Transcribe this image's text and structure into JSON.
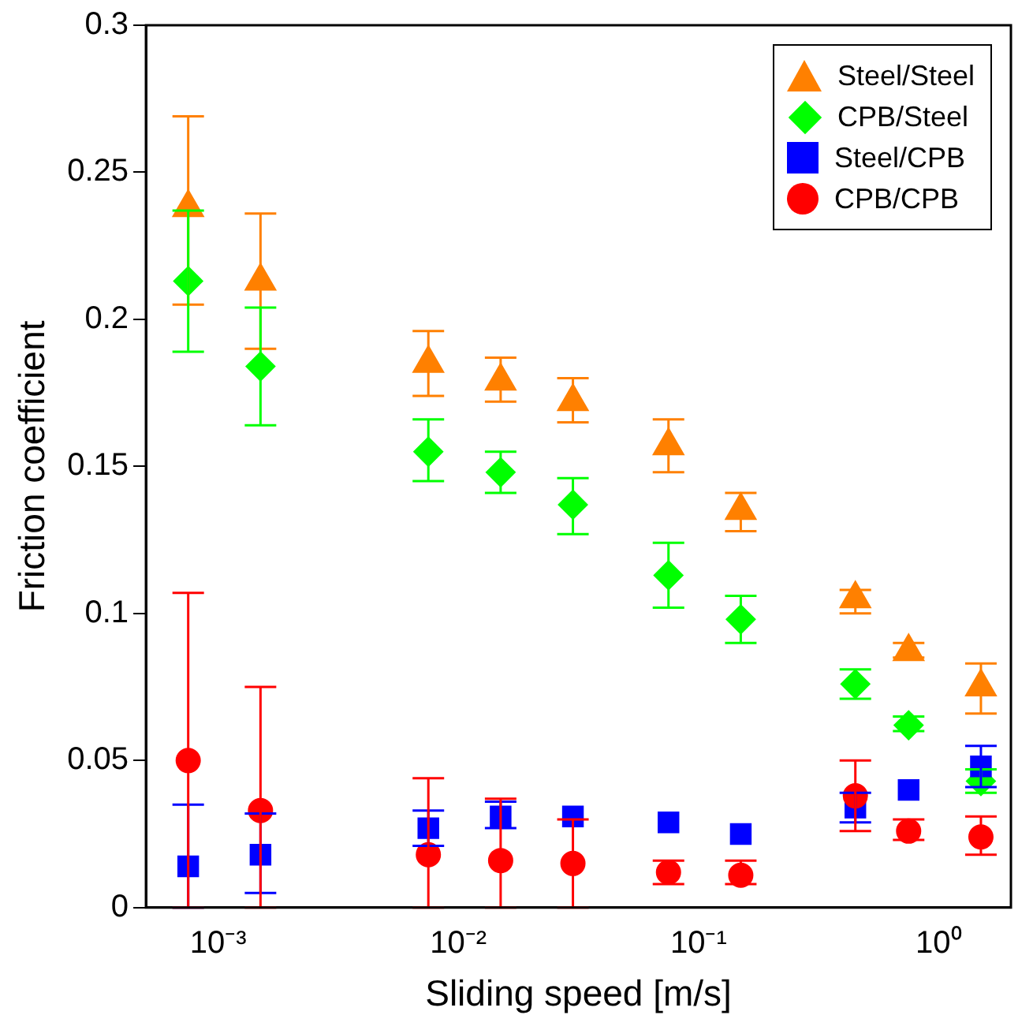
{
  "chart_data": {
    "type": "scatter",
    "xlabel": "Sliding speed [m/s]",
    "ylabel": "Friction coefficient",
    "log": "x",
    "xlim": [
      0.0005,
      2
    ],
    "xticks": [
      {
        "value": 0.001,
        "label": "10⁻³"
      },
      {
        "value": 0.01,
        "label": "10⁻²"
      },
      {
        "value": 0.1,
        "label": "10⁻¹"
      },
      {
        "value": 1,
        "label": "10⁰"
      }
    ],
    "ylim": [
      0,
      0.3
    ],
    "yticks": [
      0,
      0.05,
      0.1,
      0.15,
      0.2,
      0.25,
      0.3
    ],
    "grid": false,
    "legend": "top right",
    "x": [
      0.00075,
      0.0015,
      0.0075,
      0.015,
      0.03,
      0.075,
      0.15,
      0.45,
      0.75,
      1.5
    ],
    "series": [
      {
        "name": "Steel/Steel",
        "color": "#ff8000",
        "marker": "triangle",
        "values": [
          0.238,
          0.213,
          0.185,
          0.179,
          0.172,
          0.157,
          0.135,
          0.105,
          0.087,
          0.075
        ],
        "errors": [
          [
            0.205,
            0.269
          ],
          [
            0.19,
            0.236
          ],
          [
            0.174,
            0.196
          ],
          [
            0.172,
            0.187
          ],
          [
            0.165,
            0.18
          ],
          [
            0.148,
            0.166
          ],
          [
            0.128,
            0.141
          ],
          [
            0.1,
            0.108
          ],
          [
            0.085,
            0.09
          ],
          [
            0.066,
            0.083
          ]
        ]
      },
      {
        "name": "CPB/Steel",
        "color": "#00ff00",
        "marker": "diamond",
        "values": [
          0.213,
          0.184,
          0.155,
          0.148,
          0.137,
          0.113,
          0.098,
          0.076,
          0.062,
          0.043
        ],
        "errors": [
          [
            0.189,
            0.237
          ],
          [
            0.164,
            0.204
          ],
          [
            0.145,
            0.166
          ],
          [
            0.141,
            0.155
          ],
          [
            0.127,
            0.146
          ],
          [
            0.102,
            0.124
          ],
          [
            0.09,
            0.106
          ],
          [
            0.071,
            0.081
          ],
          [
            0.06,
            0.065
          ],
          [
            0.039,
            0.047
          ]
        ]
      },
      {
        "name": "Steel/CPB",
        "color": "#0000ff",
        "marker": "square",
        "values": [
          0.014,
          0.018,
          0.027,
          0.031,
          0.031,
          0.029,
          0.025,
          0.034,
          0.04,
          0.048
        ],
        "errors": [
          [
            0,
            0.035
          ],
          [
            0.005,
            0.032
          ],
          [
            0.021,
            0.033
          ],
          [
            0.027,
            0.036
          ],
          null,
          null,
          null,
          [
            0.029,
            0.039
          ],
          null,
          [
            0.041,
            0.055
          ]
        ]
      },
      {
        "name": "CPB/CPB",
        "color": "#ff0000",
        "marker": "circle",
        "values": [
          0.05,
          0.033,
          0.018,
          0.016,
          0.015,
          0.012,
          0.011,
          0.038,
          0.026,
          0.024
        ],
        "errors": [
          [
            0,
            0.107
          ],
          [
            0,
            0.075
          ],
          [
            0,
            0.044
          ],
          [
            0,
            0.037
          ],
          [
            0,
            0.03
          ],
          [
            0.008,
            0.016
          ],
          [
            0.008,
            0.016
          ],
          [
            0.026,
            0.05
          ],
          [
            0.023,
            0.03
          ],
          [
            0.018,
            0.031
          ]
        ]
      }
    ]
  }
}
